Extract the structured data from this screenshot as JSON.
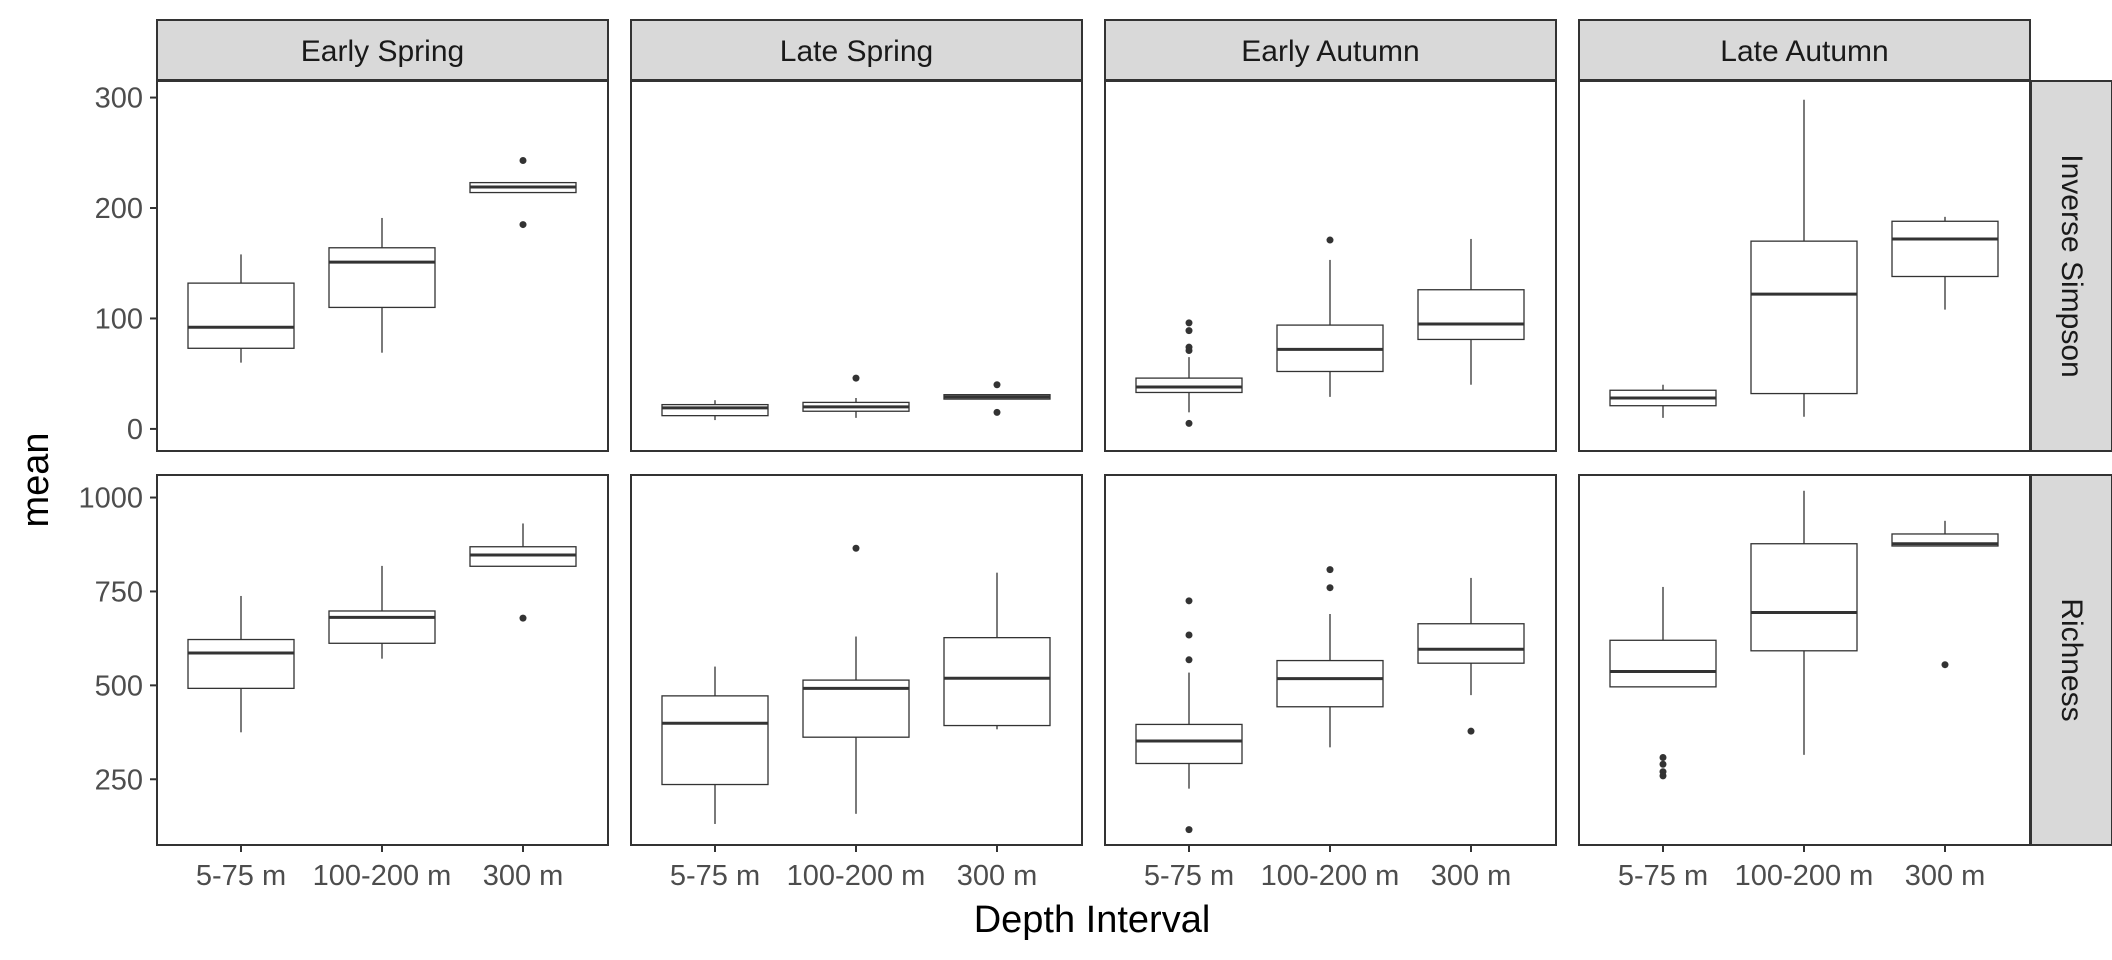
{
  "chart_data": {
    "type": "boxplot",
    "xlabel": "Depth Interval",
    "ylabel": "mean",
    "categories": [
      "5-75 m",
      "100-200 m",
      "300 m"
    ],
    "columns": [
      "Early Spring",
      "Late Spring",
      "Early Autumn",
      "Late Autumn"
    ],
    "rows": [
      {
        "name": "Inverse Simpson",
        "ylim": [
          -20,
          315
        ],
        "yticks": [
          0,
          100,
          200,
          300
        ],
        "panels": [
          {
            "column": "Early Spring",
            "boxes": [
              {
                "category": "5-75 m",
                "q1": 73,
                "median": 92,
                "q3": 132,
                "whisker_low": 60,
                "whisker_high": 158,
                "outliers": []
              },
              {
                "category": "100-200 m",
                "q1": 110,
                "median": 151,
                "q3": 164,
                "whisker_low": 69,
                "whisker_high": 191,
                "outliers": []
              },
              {
                "category": "300 m",
                "q1": 214,
                "median": 219,
                "q3": 223,
                "whisker_low": 214,
                "whisker_high": 223,
                "outliers": [
                  243,
                  185
                ]
              }
            ]
          },
          {
            "column": "Late Spring",
            "boxes": [
              {
                "category": "5-75 m",
                "q1": 12,
                "median": 19,
                "q3": 22,
                "whisker_low": 8,
                "whisker_high": 26,
                "outliers": []
              },
              {
                "category": "100-200 m",
                "q1": 16,
                "median": 20,
                "q3": 24,
                "whisker_low": 10,
                "whisker_high": 28,
                "outliers": [
                  46
                ]
              },
              {
                "category": "300 m",
                "q1": 27,
                "median": 29,
                "q3": 31,
                "whisker_low": 27,
                "whisker_high": 31,
                "outliers": [
                  40,
                  15
                ]
              }
            ]
          },
          {
            "column": "Early Autumn",
            "boxes": [
              {
                "category": "5-75 m",
                "q1": 33,
                "median": 38,
                "q3": 46,
                "whisker_low": 15,
                "whisker_high": 65,
                "outliers": [
                  96,
                  89,
                  74,
                  71,
                  5
                ]
              },
              {
                "category": "100-200 m",
                "q1": 52,
                "median": 72,
                "q3": 94,
                "whisker_low": 29,
                "whisker_high": 153,
                "outliers": [
                  171
                ]
              },
              {
                "category": "300 m",
                "q1": 81,
                "median": 95,
                "q3": 126,
                "whisker_low": 40,
                "whisker_high": 172,
                "outliers": []
              }
            ]
          },
          {
            "column": "Late Autumn",
            "boxes": [
              {
                "category": "5-75 m",
                "q1": 21,
                "median": 28,
                "q3": 35,
                "whisker_low": 10,
                "whisker_high": 40,
                "outliers": []
              },
              {
                "category": "100-200 m",
                "q1": 32,
                "median": 122,
                "q3": 170,
                "whisker_low": 11,
                "whisker_high": 298,
                "outliers": []
              },
              {
                "category": "300 m",
                "q1": 138,
                "median": 172,
                "q3": 188,
                "whisker_low": 108,
                "whisker_high": 192,
                "outliers": []
              }
            ]
          }
        ]
      },
      {
        "name": "Richness",
        "ylim": [
          75,
          1060
        ],
        "yticks": [
          250,
          500,
          750,
          1000
        ],
        "panels": [
          {
            "column": "Early Spring",
            "boxes": [
              {
                "category": "5-75 m",
                "q1": 492,
                "median": 586,
                "q3": 622,
                "whisker_low": 375,
                "whisker_high": 738,
                "outliers": []
              },
              {
                "category": "100-200 m",
                "q1": 612,
                "median": 681,
                "q3": 698,
                "whisker_low": 571,
                "whisker_high": 818,
                "outliers": []
              },
              {
                "category": "300 m",
                "q1": 817,
                "median": 847,
                "q3": 869,
                "whisker_low": 817,
                "whisker_high": 931,
                "outliers": [
                  679
                ]
              }
            ]
          },
          {
            "column": "Late Spring",
            "boxes": [
              {
                "category": "5-75 m",
                "q1": 236,
                "median": 399,
                "q3": 472,
                "whisker_low": 131,
                "whisker_high": 550,
                "outliers": []
              },
              {
                "category": "100-200 m",
                "q1": 362,
                "median": 492,
                "q3": 514,
                "whisker_low": 158,
                "whisker_high": 630,
                "outliers": [
                  865
                ]
              },
              {
                "category": "300 m",
                "q1": 393,
                "median": 519,
                "q3": 627,
                "whisker_low": 383,
                "whisker_high": 800,
                "outliers": []
              }
            ]
          },
          {
            "column": "Early Autumn",
            "boxes": [
              {
                "category": "5-75 m",
                "q1": 292,
                "median": 352,
                "q3": 396,
                "whisker_low": 225,
                "whisker_high": 534,
                "outliers": [
                  725,
                  634,
                  568,
                  116
                ]
              },
              {
                "category": "100-200 m",
                "q1": 443,
                "median": 518,
                "q3": 566,
                "whisker_low": 335,
                "whisker_high": 690,
                "outliers": [
                  808,
                  760
                ]
              },
              {
                "category": "300 m",
                "q1": 559,
                "median": 596,
                "q3": 664,
                "whisker_low": 474,
                "whisker_high": 786,
                "outliers": [
                  378
                ]
              }
            ]
          },
          {
            "column": "Late Autumn",
            "boxes": [
              {
                "category": "5-75 m",
                "q1": 496,
                "median": 537,
                "q3": 620,
                "whisker_low": 496,
                "whisker_high": 762,
                "outliers": [
                  308,
                  290,
                  270,
                  259
                ]
              },
              {
                "category": "100-200 m",
                "q1": 592,
                "median": 694,
                "q3": 877,
                "whisker_low": 315,
                "whisker_high": 1018,
                "outliers": []
              },
              {
                "category": "300 m",
                "q1": 871,
                "median": 877,
                "q3": 903,
                "whisker_low": 871,
                "whisker_high": 938,
                "outliers": [
                  555
                ]
              }
            ]
          }
        ]
      }
    ],
    "grid": false,
    "colors": {
      "strip_fill": "#d9d9d9",
      "panel_border": "#333333",
      "box_stroke": "#333333",
      "box_fill": "#ffffff",
      "text": "#4d4d4d"
    }
  }
}
